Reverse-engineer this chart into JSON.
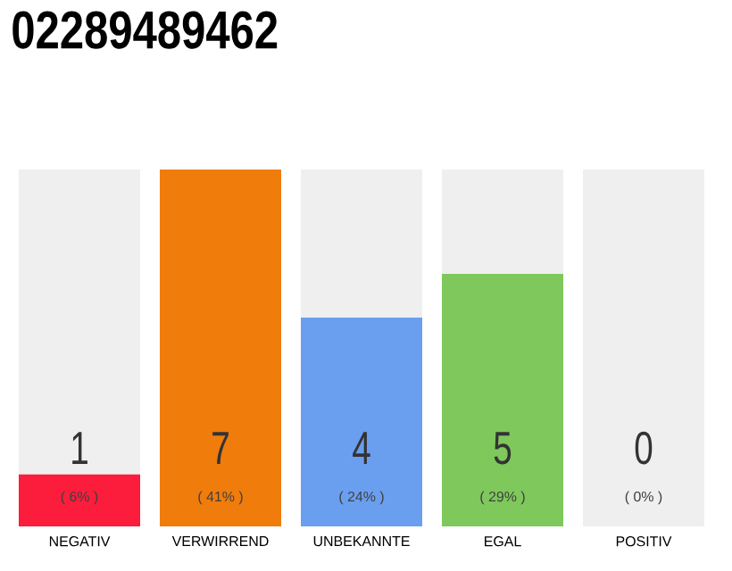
{
  "chart_data": {
    "type": "bar",
    "title": "02289489462",
    "categories": [
      "NEGATIV",
      "VERWIRREND",
      "UNBEKANNTE",
      "EGAL",
      "POSITIV"
    ],
    "stacked": true,
    "series": [
      {
        "colors": [
          "#fc1c3c",
          "#f07c0c",
          "#6a9ff0",
          "#7ec85c",
          "#cccccc"
        ],
        "values": [
          6,
          41,
          24,
          29,
          0
        ],
        "value_labels": [
          "( 6% )",
          "( 41% )",
          "( 24% )",
          "( 29% )",
          null
        ]
      },
      {
        "color": "#efefef",
        "values": [
          35,
          0,
          17,
          12,
          41
        ]
      }
    ],
    "annotations": [
      "1",
      "7",
      "4",
      "5",
      "0",
      {
        "text": "( 0% )",
        "x": "POSITIV",
        "y": 0
      }
    ],
    "tick_labels": "x"
  }
}
